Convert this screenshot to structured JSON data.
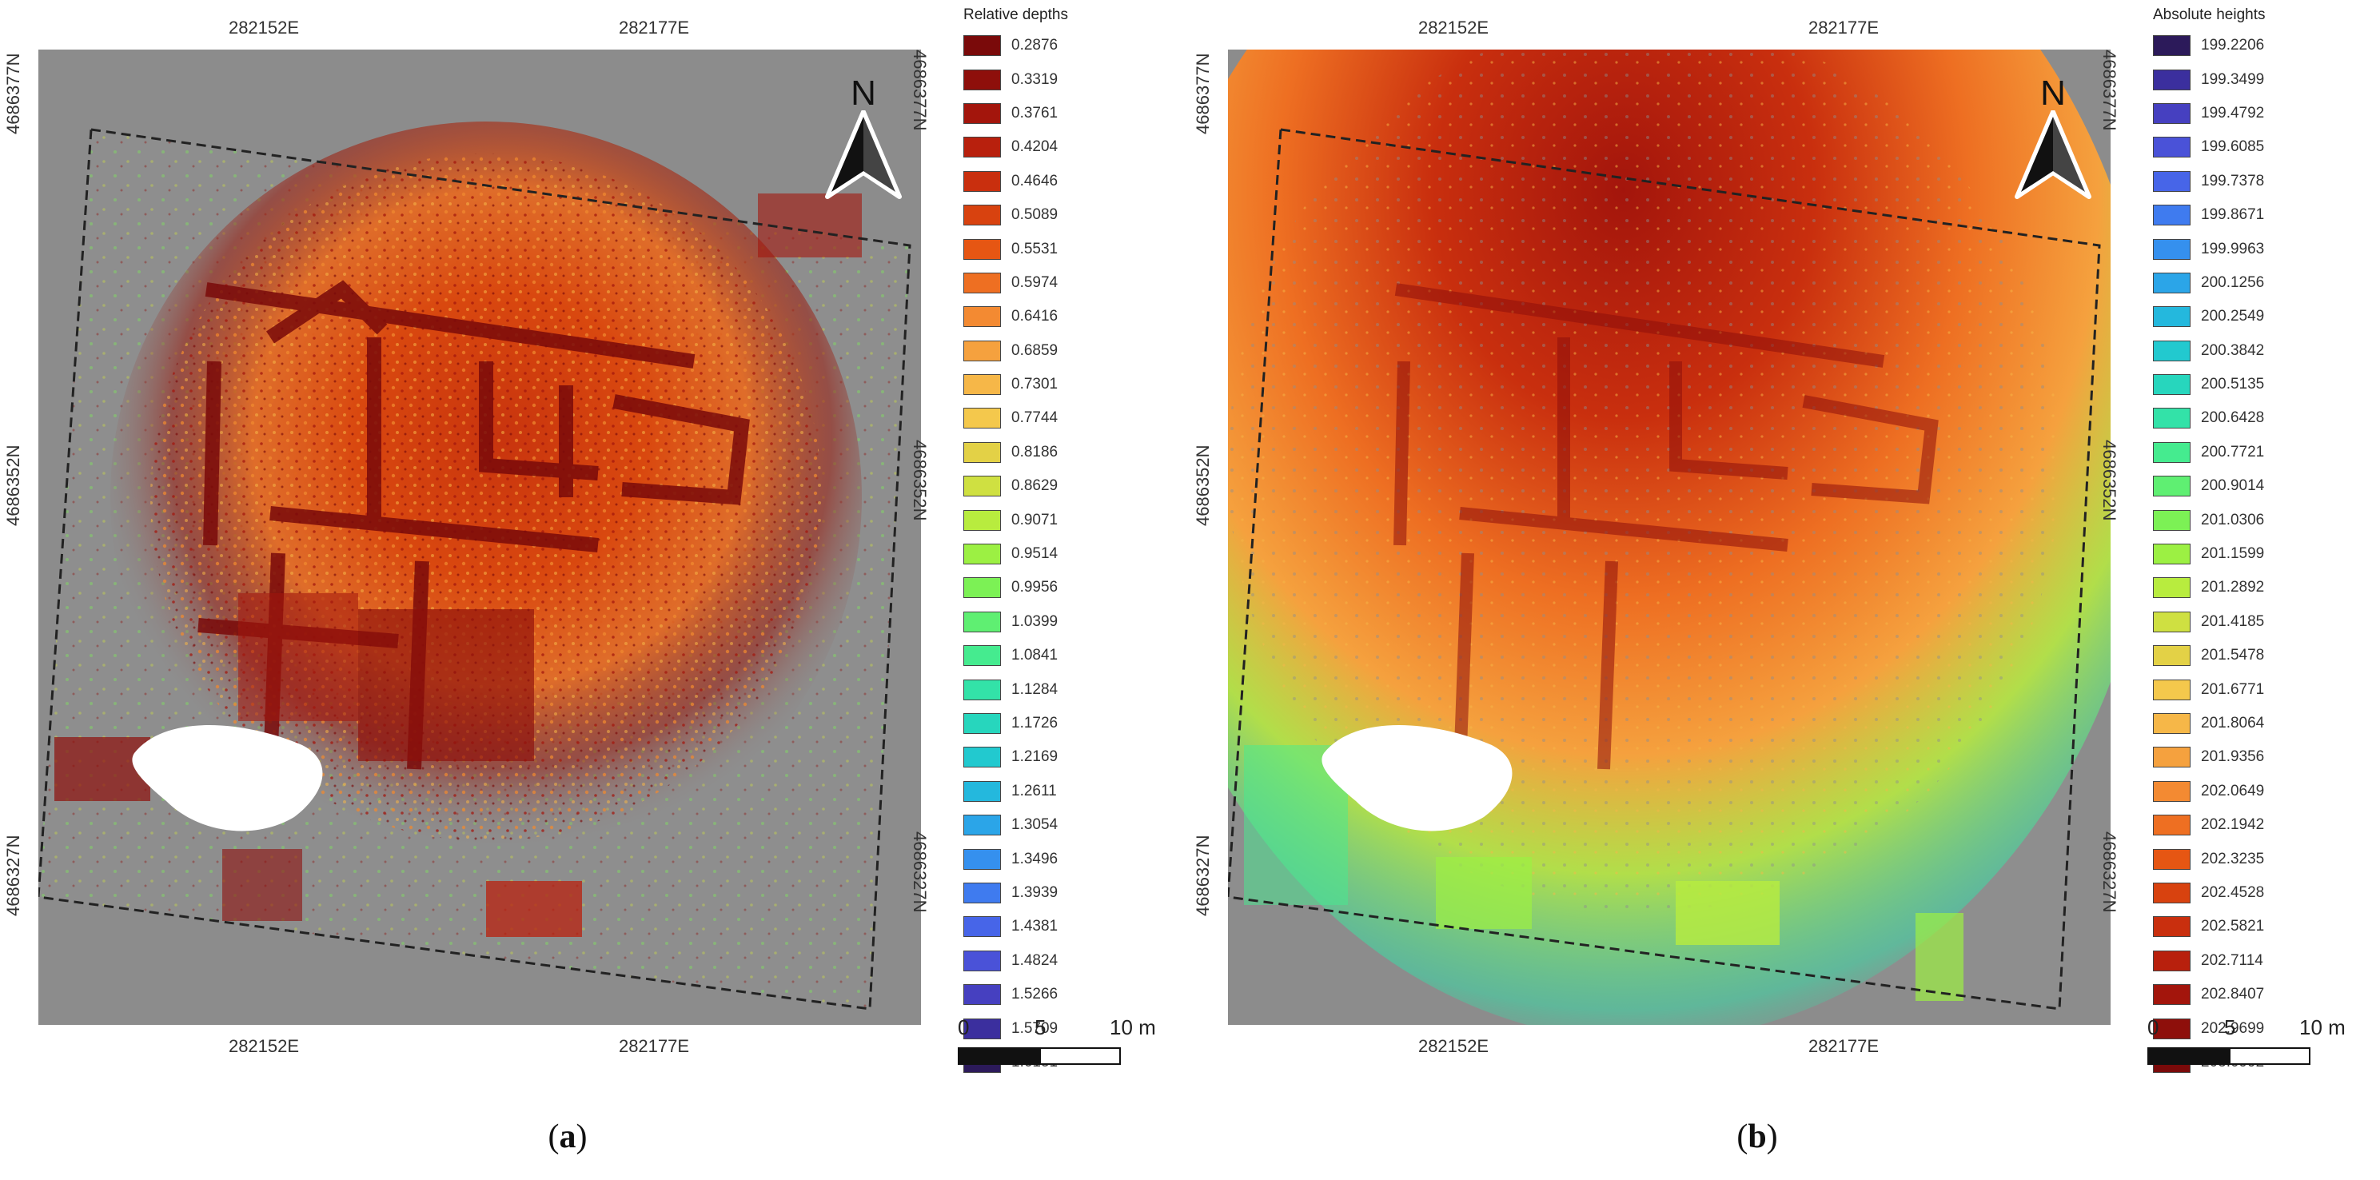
{
  "panels": [
    {
      "id": "a",
      "caption_prefix": "(",
      "caption_letter": "a",
      "caption_suffix": ")",
      "legend_title": "Relative depths",
      "legend_items": [
        {
          "label": "0.2876",
          "color": "#7a0a0a"
        },
        {
          "label": "0.3319",
          "color": "#8e0f0b"
        },
        {
          "label": "0.3761",
          "color": "#a3150c"
        },
        {
          "label": "0.4204",
          "color": "#b8200d"
        },
        {
          "label": "0.4646",
          "color": "#c92f0e"
        },
        {
          "label": "0.5089",
          "color": "#d8420f"
        },
        {
          "label": "0.5531",
          "color": "#e65613"
        },
        {
          "label": "0.5974",
          "color": "#ee6f22"
        },
        {
          "label": "0.6416",
          "color": "#f38a32"
        },
        {
          "label": "0.6859",
          "color": "#f5a13e"
        },
        {
          "label": "0.7301",
          "color": "#f6b748"
        },
        {
          "label": "0.7744",
          "color": "#f4c84c"
        },
        {
          "label": "0.8186",
          "color": "#e3d146"
        },
        {
          "label": "0.8629",
          "color": "#cfe041"
        },
        {
          "label": "0.9071",
          "color": "#b8ec3e"
        },
        {
          "label": "0.9514",
          "color": "#9cf043"
        },
        {
          "label": "0.9956",
          "color": "#7cf155"
        },
        {
          "label": "1.0399",
          "color": "#5fef72"
        },
        {
          "label": "1.0841",
          "color": "#45eb8f"
        },
        {
          "label": "1.1284",
          "color": "#33e2a8"
        },
        {
          "label": "1.1726",
          "color": "#27d6bd"
        },
        {
          "label": "1.2169",
          "color": "#22c9cf"
        },
        {
          "label": "1.2611",
          "color": "#24b8dd"
        },
        {
          "label": "1.3054",
          "color": "#2ba5e8"
        },
        {
          "label": "1.3496",
          "color": "#3590ee"
        },
        {
          "label": "1.3939",
          "color": "#3f7bef"
        },
        {
          "label": "1.4381",
          "color": "#4765e8"
        },
        {
          "label": "1.4824",
          "color": "#4a52d8"
        },
        {
          "label": "1.5266",
          "color": "#4640c0"
        },
        {
          "label": "1.5709",
          "color": "#3b2f9e"
        },
        {
          "label": "1.6151",
          "color": "#2c1a5a"
        }
      ],
      "coords": {
        "top": [
          "282152E",
          "282177E"
        ],
        "bottom": [
          "282152E",
          "282177E"
        ],
        "left": [
          "4686377N",
          "4686352N",
          "4686327N"
        ],
        "right": [
          "4686377N",
          "4686352N",
          "4686327N"
        ]
      },
      "north_label": "N",
      "scale": {
        "labels": [
          "0",
          "5",
          "10 m"
        ]
      }
    },
    {
      "id": "b",
      "caption_prefix": "(",
      "caption_letter": "b",
      "caption_suffix": ")",
      "legend_title": "Absolute heights",
      "legend_items": [
        {
          "label": "199.2206",
          "color": "#2c1a5a"
        },
        {
          "label": "199.3499",
          "color": "#3b2f9e"
        },
        {
          "label": "199.4792",
          "color": "#4640c0"
        },
        {
          "label": "199.6085",
          "color": "#4a52d8"
        },
        {
          "label": "199.7378",
          "color": "#4765e8"
        },
        {
          "label": "199.8671",
          "color": "#3f7bef"
        },
        {
          "label": "199.9963",
          "color": "#3590ee"
        },
        {
          "label": "200.1256",
          "color": "#2ba5e8"
        },
        {
          "label": "200.2549",
          "color": "#24b8dd"
        },
        {
          "label": "200.3842",
          "color": "#22c9cf"
        },
        {
          "label": "200.5135",
          "color": "#27d6bd"
        },
        {
          "label": "200.6428",
          "color": "#33e2a8"
        },
        {
          "label": "200.7721",
          "color": "#45eb8f"
        },
        {
          "label": "200.9014",
          "color": "#5fef72"
        },
        {
          "label": "201.0306",
          "color": "#7cf155"
        },
        {
          "label": "201.1599",
          "color": "#9cf043"
        },
        {
          "label": "201.2892",
          "color": "#b8ec3e"
        },
        {
          "label": "201.4185",
          "color": "#cfe041"
        },
        {
          "label": "201.5478",
          "color": "#e3d146"
        },
        {
          "label": "201.6771",
          "color": "#f4c84c"
        },
        {
          "label": "201.8064",
          "color": "#f6b748"
        },
        {
          "label": "201.9356",
          "color": "#f5a13e"
        },
        {
          "label": "202.0649",
          "color": "#f38a32"
        },
        {
          "label": "202.1942",
          "color": "#ee6f22"
        },
        {
          "label": "202.3235",
          "color": "#e65613"
        },
        {
          "label": "202.4528",
          "color": "#d8420f"
        },
        {
          "label": "202.5821",
          "color": "#c92f0e"
        },
        {
          "label": "202.7114",
          "color": "#b8200d"
        },
        {
          "label": "202.8407",
          "color": "#a3150c"
        },
        {
          "label": "202.9699",
          "color": "#8e0f0b"
        },
        {
          "label": "203.0992",
          "color": "#7a0a0a"
        }
      ],
      "coords": {
        "top": [
          "282152E",
          "282177E"
        ],
        "bottom": [
          "282152E",
          "282177E"
        ],
        "left": [
          "4686377N",
          "4686352N",
          "4686327N"
        ],
        "right": [
          "4686377N",
          "4686352N",
          "4686327N"
        ]
      },
      "north_label": "N",
      "scale": {
        "labels": [
          "0",
          "5",
          "10 m"
        ]
      }
    }
  ],
  "map_background_color": "#8c8c8c"
}
